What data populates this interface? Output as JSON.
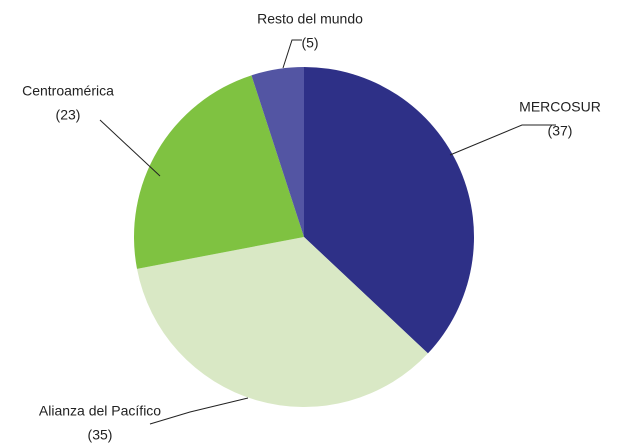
{
  "chart_data": {
    "type": "pie",
    "categories": [
      "MERCOSUR",
      "Alianza del Pacífico",
      "Centroamérica",
      "Resto del mundo"
    ],
    "values": [
      37,
      35,
      23,
      5
    ],
    "value_labels": [
      "(37)",
      "(35)",
      "(23)",
      "(5)"
    ],
    "colors": [
      "#2e3087",
      "#d9e8c5",
      "#7fc241",
      "#5355a3"
    ]
  }
}
